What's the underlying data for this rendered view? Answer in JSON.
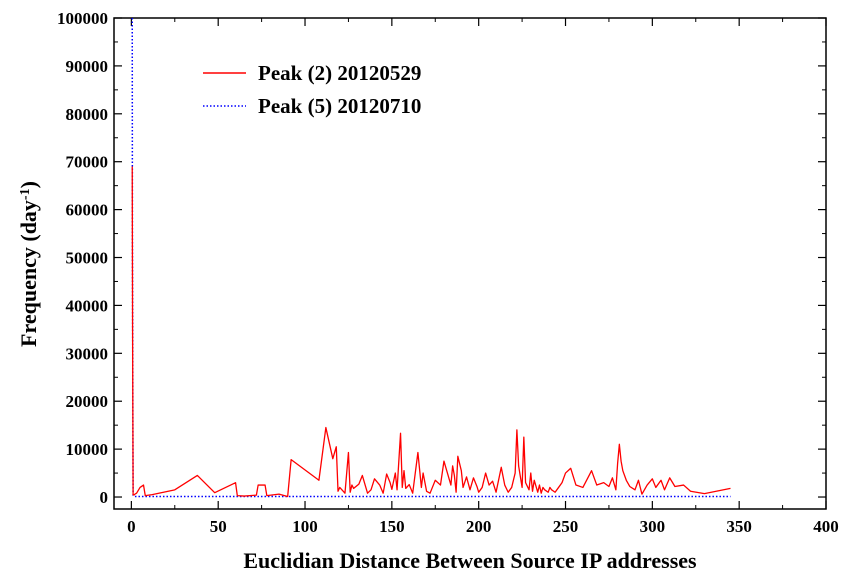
{
  "chart_data": {
    "type": "line",
    "title": "",
    "xlabel": "Euclidian Distance Between Source IP addresses",
    "ylabel_main": "Frequency (day",
    "ylabel_sup": "-1",
    "ylabel_end": ")",
    "xlim": [
      -10,
      400
    ],
    "ylim": [
      -2500,
      100000
    ],
    "xticks": [
      0,
      50,
      100,
      150,
      200,
      250,
      300,
      350,
      400
    ],
    "yticks": [
      0,
      10000,
      20000,
      30000,
      40000,
      50000,
      60000,
      70000,
      80000,
      90000,
      100000
    ],
    "grid": false,
    "legend_position": "top-left",
    "series": [
      {
        "name": "Peak (2) 20120529",
        "color": "#ff0000",
        "style": "solid",
        "x": [
          0.5,
          0.7,
          1,
          1.5,
          2,
          3,
          5,
          7,
          8,
          12,
          25,
          38,
          48,
          60,
          61,
          65,
          72,
          73,
          77,
          78,
          85,
          90,
          92,
          108,
          112,
          116,
          118,
          119,
          120,
          123,
          125,
          126,
          127,
          128,
          131,
          133,
          136,
          138,
          140,
          143,
          145,
          147,
          149,
          150,
          152,
          153,
          155,
          156,
          157,
          158,
          160,
          162,
          165,
          167,
          168,
          170,
          172,
          175,
          178,
          180,
          182,
          184,
          185,
          186,
          187,
          188,
          190,
          191,
          193,
          195,
          197,
          199,
          200,
          202,
          204,
          206,
          208,
          210,
          213,
          215,
          217,
          219,
          221,
          222,
          223,
          225,
          226,
          227,
          229,
          230,
          231,
          232,
          234,
          235,
          236,
          237,
          238,
          240,
          241,
          242,
          244,
          246,
          248,
          250,
          253,
          256,
          260,
          265,
          268,
          272,
          275,
          277,
          279,
          280,
          281,
          282,
          283,
          285,
          287,
          290,
          292,
          294,
          297,
          300,
          302,
          305,
          307,
          310,
          313,
          318,
          322,
          330,
          345
        ],
        "y": [
          69000,
          35000,
          500,
          400,
          600,
          800,
          2000,
          2500,
          300,
          500,
          1500,
          4500,
          900,
          3000,
          300,
          200,
          400,
          2500,
          2500,
          300,
          600,
          100,
          7800,
          3500,
          14500,
          8000,
          10500,
          1200,
          2000,
          800,
          9300,
          1000,
          2500,
          1800,
          2700,
          4500,
          800,
          1500,
          3800,
          2500,
          800,
          4800,
          3000,
          1600,
          5000,
          1500,
          13300,
          2000,
          5500,
          1800,
          2600,
          800,
          9300,
          2000,
          5000,
          1200,
          800,
          3500,
          2500,
          7500,
          5000,
          2500,
          6500,
          4500,
          1000,
          8500,
          5500,
          2000,
          4200,
          1500,
          4000,
          2200,
          1000,
          2000,
          5000,
          2500,
          3300,
          1000,
          6200,
          2500,
          1000,
          2000,
          5000,
          14000,
          6500,
          2000,
          12500,
          3000,
          1500,
          5000,
          1200,
          3500,
          1000,
          2500,
          800,
          2000,
          1500,
          1000,
          2000,
          1500,
          1000,
          2000,
          3000,
          5000,
          6000,
          2500,
          2000,
          5500,
          2500,
          3000,
          2200,
          4000,
          1500,
          7000,
          11000,
          7500,
          5500,
          3500,
          2200,
          1500,
          3500,
          600,
          2500,
          3800,
          2000,
          3500,
          1500,
          4000,
          2200,
          2500,
          1200,
          700,
          1800
        ]
      },
      {
        "name": "Peak (5) 20120710",
        "color": "#0000ff",
        "style": "dotted",
        "x": [
          0.5,
          0.6,
          1,
          2,
          50,
          100,
          150,
          200,
          250,
          300,
          345
        ],
        "y": [
          100000,
          55000,
          400,
          100,
          100,
          100,
          100,
          100,
          100,
          100,
          100
        ]
      }
    ]
  }
}
